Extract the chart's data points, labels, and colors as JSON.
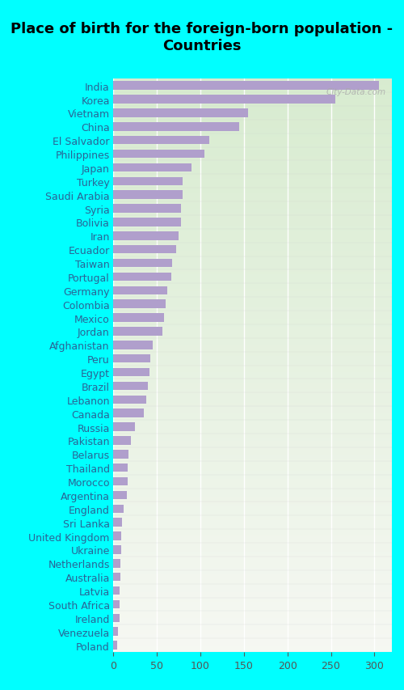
{
  "title": "Place of birth for the foreign-born population -\nCountries",
  "categories": [
    "India",
    "Korea",
    "Vietnam",
    "China",
    "El Salvador",
    "Philippines",
    "Japan",
    "Turkey",
    "Saudi Arabia",
    "Syria",
    "Bolivia",
    "Iran",
    "Ecuador",
    "Taiwan",
    "Portugal",
    "Germany",
    "Colombia",
    "Mexico",
    "Jordan",
    "Afghanistan",
    "Peru",
    "Egypt",
    "Brazil",
    "Lebanon",
    "Canada",
    "Russia",
    "Pakistan",
    "Belarus",
    "Thailand",
    "Morocco",
    "Argentina",
    "England",
    "Sri Lanka",
    "United Kingdom",
    "Ukraine",
    "Netherlands",
    "Australia",
    "Latvia",
    "South Africa",
    "Ireland",
    "Venezuela",
    "Poland"
  ],
  "values": [
    305,
    255,
    155,
    145,
    110,
    105,
    90,
    80,
    80,
    78,
    78,
    75,
    72,
    68,
    67,
    62,
    60,
    58,
    57,
    45,
    43,
    42,
    40,
    38,
    35,
    25,
    20,
    18,
    17,
    17,
    16,
    12,
    10,
    9,
    9,
    8,
    8,
    7,
    7,
    7,
    6,
    5
  ],
  "bar_color": "#b09fcc",
  "background_color": "#00ffff",
  "title_fontsize": 13,
  "label_fontsize": 9,
  "tick_fontsize": 9,
  "xlim": [
    0,
    320
  ],
  "xticks": [
    0,
    50,
    100,
    150,
    200,
    250,
    300
  ],
  "watermark": "City-Data.com",
  "grid_color": "#ffffff",
  "label_color": "#2a6496",
  "tick_color": "#555555"
}
